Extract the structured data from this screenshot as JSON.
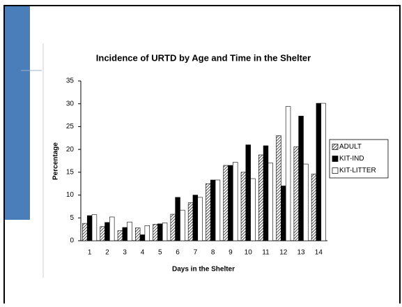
{
  "chart_data": {
    "type": "bar",
    "title": "Incidence of URTD by Age and Time in the Shelter",
    "x_label": "Days in the Shelter",
    "y_label": "Percentage",
    "categories": [
      "1",
      "2",
      "3",
      "4",
      "5",
      "6",
      "7",
      "8",
      "9",
      "10",
      "11",
      "12",
      "13",
      "14"
    ],
    "series": [
      {
        "name": "ADULT",
        "color": "#000000",
        "hatch": true,
        "values": [
          3.8,
          3.1,
          2.2,
          2.8,
          3.6,
          5.8,
          8.3,
          12.5,
          16.5,
          15.0,
          18.8,
          23.0,
          20.6,
          14.6
        ]
      },
      {
        "name": "KIT-IND",
        "color": "#000000",
        "hatch": false,
        "values": [
          5.5,
          4.0,
          2.9,
          1.3,
          3.7,
          9.5,
          10.0,
          13.3,
          16.5,
          21.0,
          20.8,
          12.0,
          27.3,
          30.1
        ]
      },
      {
        "name": "KIT-LITTER",
        "color": "#ffffff",
        "hatch": false,
        "values": [
          5.7,
          5.2,
          4.1,
          3.3,
          3.9,
          6.7,
          9.5,
          13.3,
          17.2,
          13.6,
          17.0,
          29.4,
          16.8,
          30.1
        ]
      }
    ],
    "ylim": [
      0,
      35
    ],
    "yticks": [
      0,
      5,
      10,
      15,
      20,
      25,
      30,
      35
    ],
    "grid": false,
    "legend": "right"
  }
}
